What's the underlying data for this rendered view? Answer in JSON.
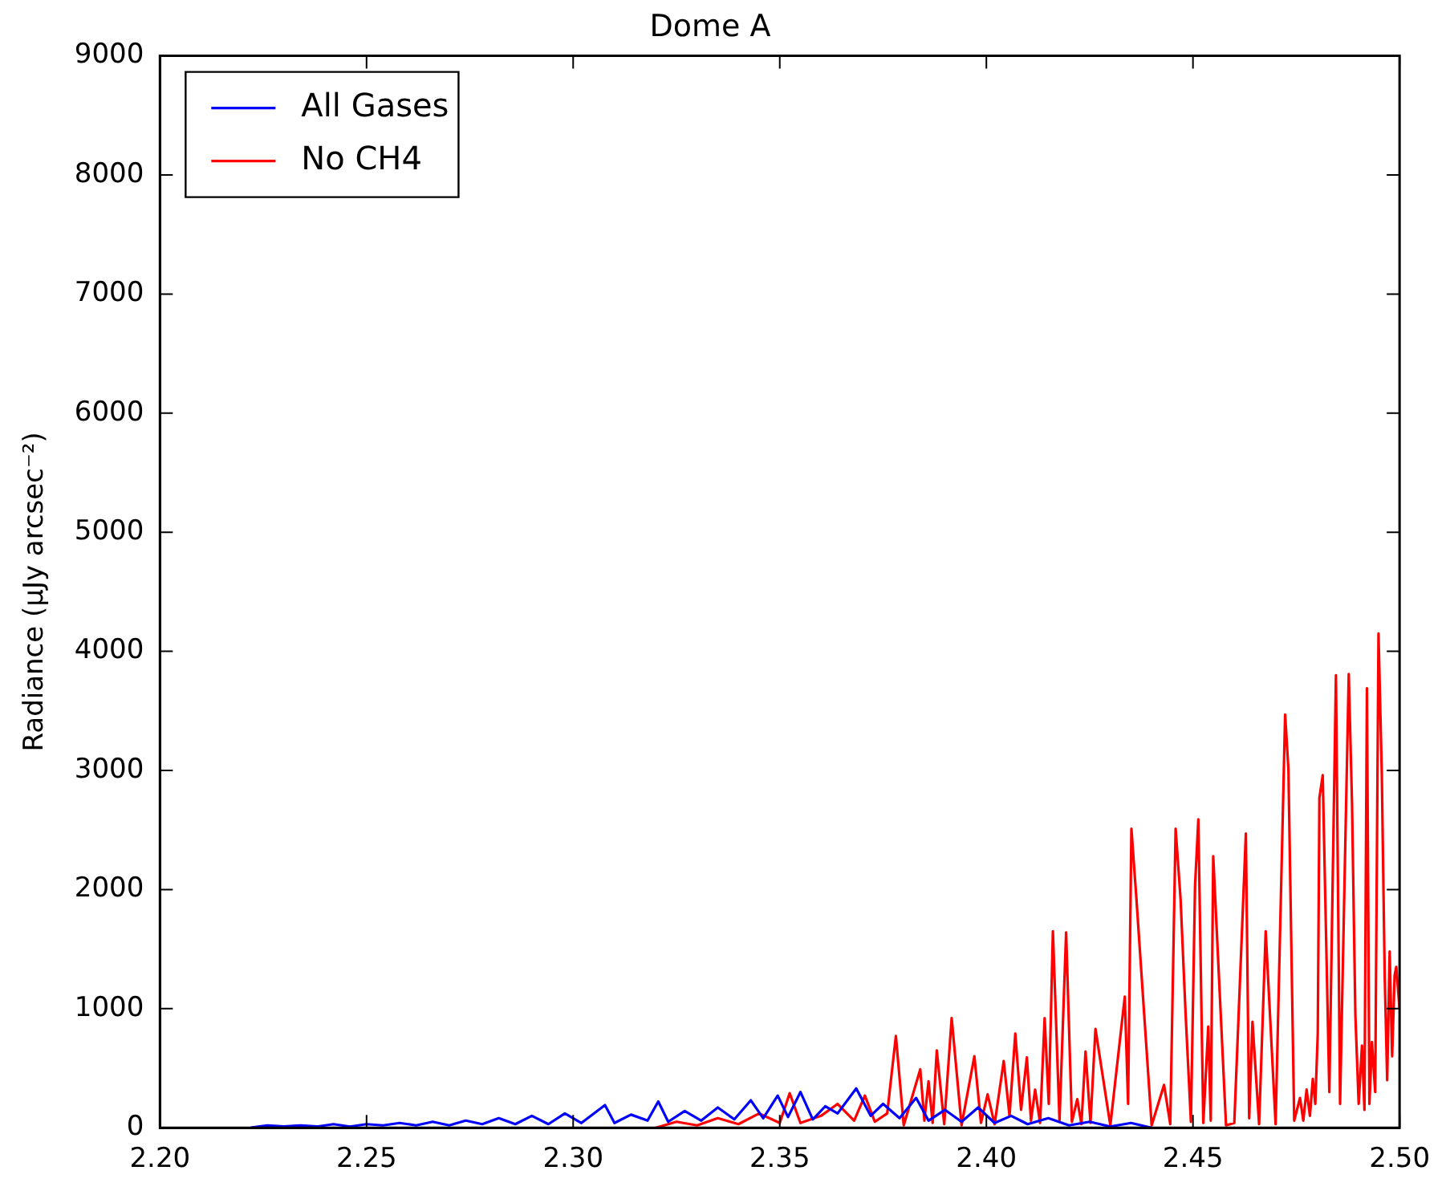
{
  "chart_data": {
    "type": "line",
    "title": "Dome A",
    "ylabel": "Radiance (μJy arcsec⁻²)",
    "xlim": [
      2.2,
      2.5
    ],
    "xticks": [
      {
        "value": 2.2,
        "label": "2.20"
      },
      {
        "value": 2.25,
        "label": "2.25"
      },
      {
        "value": 2.3,
        "label": "2.30"
      },
      {
        "value": 2.35,
        "label": "2.35"
      },
      {
        "value": 2.4,
        "label": "2.40"
      },
      {
        "value": 2.45,
        "label": "2.45"
      },
      {
        "value": 2.5,
        "label": "2.50"
      }
    ],
    "ylim": [
      0,
      9000
    ],
    "yticks": [
      0,
      1000,
      2000,
      3000,
      4000,
      5000,
      6000,
      7000,
      8000,
      9000
    ],
    "grid": false,
    "legend": "top left",
    "marker": "none",
    "line_style": "solid",
    "series": [
      {
        "name": "All Gases",
        "color": "#0000ff",
        "x": [
          2.222,
          2.226,
          2.23,
          2.234,
          2.238,
          2.242,
          2.246,
          2.25,
          2.254,
          2.258,
          2.262,
          2.266,
          2.27,
          2.274,
          2.278,
          2.282,
          2.286,
          2.29,
          2.294,
          2.298,
          2.302,
          2.3077,
          2.31,
          2.314,
          2.318,
          2.3206,
          2.323,
          2.327,
          2.331,
          2.335,
          2.339,
          2.343,
          2.346,
          2.3495,
          2.352,
          2.355,
          2.358,
          2.361,
          2.364,
          2.3685,
          2.372,
          2.375,
          2.379,
          2.383,
          2.386,
          2.39,
          2.394,
          2.398,
          2.402,
          2.406,
          2.41,
          2.415,
          2.42,
          2.425,
          2.43,
          2.435,
          2.44
        ],
        "values": [
          0,
          20,
          10,
          20,
          10,
          30,
          10,
          30,
          20,
          40,
          20,
          50,
          20,
          60,
          30,
          80,
          30,
          100,
          30,
          120,
          40,
          190,
          40,
          110,
          60,
          220,
          50,
          140,
          60,
          170,
          70,
          230,
          80,
          270,
          90,
          300,
          70,
          180,
          120,
          330,
          100,
          200,
          80,
          250,
          60,
          150,
          50,
          170,
          40,
          100,
          30,
          80,
          20,
          50,
          10,
          40,
          0
        ]
      },
      {
        "name": "No CH4",
        "color": "#ff0000",
        "x": [
          2.32,
          2.325,
          2.33,
          2.335,
          2.34,
          2.345,
          2.35,
          2.3524,
          2.355,
          2.36,
          2.364,
          2.368,
          2.3706,
          2.373,
          2.376,
          2.3781,
          2.38,
          2.384,
          2.385,
          2.386,
          2.387,
          2.388,
          2.3898,
          2.3916,
          2.394,
          2.3971,
          2.3987,
          2.4003,
          2.402,
          2.4042,
          2.4056,
          2.407,
          2.4084,
          2.4098,
          2.4108,
          2.4118,
          2.413,
          2.4141,
          2.4151,
          2.4161,
          2.4177,
          2.4193,
          2.4207,
          2.422,
          2.423,
          2.424,
          2.4252,
          2.4264,
          2.43,
          2.4335,
          2.4343,
          2.4351,
          2.4363,
          2.44,
          2.443,
          2.4445,
          2.4458,
          2.447,
          2.4482,
          2.4495,
          2.4505,
          2.4513,
          2.4525,
          2.4537,
          2.4543,
          2.4549,
          2.458,
          2.46,
          2.4628,
          2.4636,
          2.4644,
          2.466,
          2.4676,
          2.47,
          2.4723,
          2.4731,
          2.4745,
          2.4759,
          2.4767,
          2.4775,
          2.4783,
          2.479,
          2.4796,
          2.4802,
          2.4806,
          2.4814,
          2.483,
          2.4846,
          2.4856,
          2.4866,
          2.4877,
          2.4885,
          2.4893,
          2.4901,
          2.4909,
          2.4915,
          2.4921,
          2.4927,
          2.4933,
          2.4941,
          2.4949,
          2.4957,
          2.4964,
          2.497,
          2.4976,
          2.4982,
          2.4988,
          2.4992,
          2.5
        ],
        "values": [
          0,
          50,
          20,
          80,
          30,
          120,
          40,
          290,
          40,
          100,
          200,
          60,
          270,
          50,
          120,
          770,
          20,
          490,
          60,
          390,
          40,
          650,
          30,
          920,
          20,
          600,
          40,
          280,
          30,
          560,
          100,
          790,
          150,
          590,
          60,
          320,
          40,
          920,
          200,
          1650,
          60,
          1640,
          50,
          240,
          30,
          640,
          40,
          830,
          20,
          1100,
          200,
          2510,
          1930,
          20,
          360,
          30,
          2510,
          1920,
          970,
          50,
          2030,
          2590,
          40,
          850,
          60,
          2280,
          20,
          40,
          2470,
          80,
          890,
          30,
          1650,
          30,
          3470,
          3010,
          60,
          250,
          60,
          320,
          100,
          410,
          200,
          790,
          2770,
          2960,
          300,
          3800,
          200,
          1930,
          3810,
          2710,
          950,
          200,
          690,
          150,
          3690,
          200,
          720,
          300,
          4150,
          2970,
          1280,
          400,
          1480,
          600,
          1280,
          1350,
          1000
        ]
      }
    ]
  }
}
